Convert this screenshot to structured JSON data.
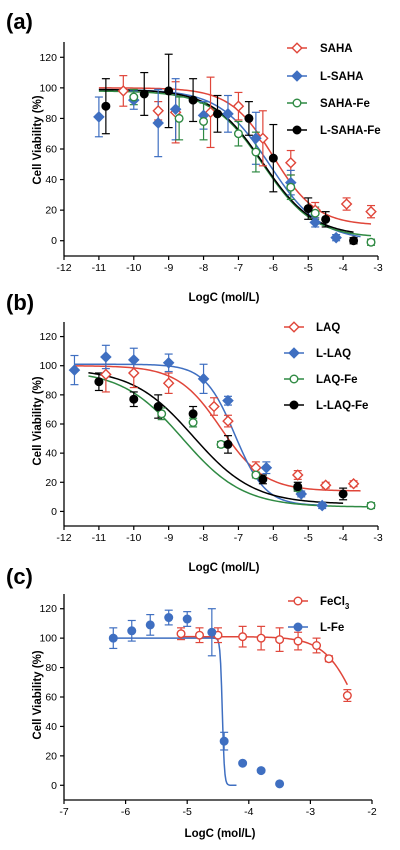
{
  "chart_data": [
    {
      "panel": "(a)",
      "type": "scatter",
      "xlabel": "LogC (mol/L)",
      "ylabel": "Cell Viability (%)",
      "xlim": [
        -12,
        -3
      ],
      "ylim": [
        -10,
        130
      ],
      "xticks": [
        -12,
        -11,
        -10,
        -9,
        -8,
        -7,
        -6,
        -5,
        -4,
        -3
      ],
      "yticks": [
        0,
        20,
        40,
        60,
        80,
        100,
        120
      ],
      "legend_position": "top-right",
      "series": [
        {
          "name": "SAHA",
          "color": "#e0463a",
          "marker": "diamond-open",
          "x": [
            -10.3,
            -9.3,
            -8.8,
            -7.8,
            -7.0,
            -6.3,
            -5.5,
            -4.8,
            -3.9,
            -3.2
          ],
          "y": [
            98,
            85,
            84,
            84,
            88,
            67,
            51,
            20,
            24,
            19
          ],
          "err": [
            10,
            6,
            20,
            23,
            9,
            18,
            8,
            5,
            4,
            4
          ],
          "curve": {
            "top": 100,
            "bottom": 10,
            "logEC50": -6.0,
            "hill": 0.7,
            "from": -11,
            "to": -3.2
          }
        },
        {
          "name": "L-SAHA",
          "color": "#3f6fc1",
          "marker": "diamond",
          "x": [
            -11.0,
            -10.0,
            -9.3,
            -8.8,
            -8.0,
            -7.3,
            -6.5,
            -5.5,
            -4.8,
            -4.2
          ],
          "y": [
            81,
            92,
            77,
            86,
            82,
            83,
            67,
            38,
            12,
            2
          ],
          "err": [
            13,
            6,
            22,
            20,
            9,
            12,
            17,
            8,
            3,
            2
          ],
          "curve": {
            "top": 99,
            "bottom": 0,
            "logEC50": -6.1,
            "hill": 0.6,
            "from": -11,
            "to": -3.5
          }
        },
        {
          "name": "SAHA-Fe",
          "color": "#2f8a43",
          "marker": "circle-open",
          "x": [
            -10.0,
            -8.7,
            -8.0,
            -7.0,
            -6.5,
            -5.5,
            -4.8,
            -3.2
          ],
          "y": [
            94,
            80,
            78,
            70,
            58,
            35,
            18,
            -1
          ],
          "err": [
            5,
            14,
            12,
            8,
            13,
            8,
            4,
            2
          ],
          "curve": {
            "top": 98,
            "bottom": 2,
            "logEC50": -6.3,
            "hill": 0.6,
            "from": -11,
            "to": -3.2
          }
        },
        {
          "name": "L-SAHA-Fe",
          "color": "#000000",
          "marker": "circle",
          "x": [
            -10.8,
            -9.7,
            -9.0,
            -8.3,
            -7.6,
            -6.7,
            -6.0,
            -5.0,
            -4.5,
            -3.7
          ],
          "y": [
            88,
            96,
            98,
            92,
            83,
            80,
            54,
            21,
            14,
            0
          ],
          "err": [
            18,
            14,
            24,
            14,
            12,
            11,
            22,
            7,
            5,
            2
          ],
          "curve": {
            "top": 99,
            "bottom": 3,
            "logEC50": -6.3,
            "hill": 0.6,
            "from": -11,
            "to": -3.7
          }
        }
      ]
    },
    {
      "panel": "(b)",
      "type": "scatter",
      "xlabel": "LogC (mol/L)",
      "ylabel": "Cell Viability (%)",
      "xlim": [
        -12,
        -3
      ],
      "ylim": [
        -10,
        130
      ],
      "xticks": [
        -12,
        -11,
        -10,
        -9,
        -8,
        -7,
        -6,
        -5,
        -4,
        -3
      ],
      "yticks": [
        0,
        20,
        40,
        60,
        80,
        100,
        120
      ],
      "legend_position": "top-right",
      "series": [
        {
          "name": "LAQ",
          "color": "#e0463a",
          "marker": "diamond-open",
          "x": [
            -10.8,
            -10.0,
            -9.0,
            -7.7,
            -7.3,
            -6.5,
            -5.3,
            -4.5,
            -3.7
          ],
          "y": [
            94,
            95,
            88,
            72,
            62,
            30,
            25,
            18,
            19
          ],
          "err": [
            12,
            10,
            7,
            6,
            4,
            4,
            3,
            2,
            2
          ],
          "curve": {
            "top": 100,
            "bottom": 14,
            "logEC50": -7.5,
            "hill": 0.7,
            "from": -11.7,
            "to": -3.5
          }
        },
        {
          "name": "L-LAQ",
          "color": "#3f6fc1",
          "marker": "diamond",
          "x": [
            -11.7,
            -10.8,
            -10.0,
            -9.0,
            -8.0,
            -7.3,
            -6.2,
            -5.2,
            -4.6
          ],
          "y": [
            97,
            106,
            104,
            102,
            91,
            76,
            30,
            12,
            4
          ],
          "err": [
            10,
            8,
            8,
            6,
            10,
            3,
            4,
            2,
            2
          ],
          "curve": {
            "top": 101,
            "bottom": 4,
            "logEC50": -7.1,
            "hill": 1.0,
            "from": -11.7,
            "to": -4.6
          }
        },
        {
          "name": "LAQ-Fe",
          "color": "#2f8a43",
          "marker": "circle-open",
          "x": [
            -9.2,
            -8.3,
            -7.5,
            -6.5,
            -5.3,
            -3.2
          ],
          "y": [
            67,
            61,
            46,
            25,
            16,
            4
          ],
          "err": [
            4,
            3,
            2,
            2,
            2,
            2
          ],
          "curve": {
            "top": 97,
            "bottom": 3,
            "logEC50": -8.6,
            "hill": 0.5,
            "from": -11.3,
            "to": -3.2
          }
        },
        {
          "name": "L-LAQ-Fe",
          "color": "#000000",
          "marker": "circle",
          "x": [
            -11.0,
            -10.0,
            -9.3,
            -8.3,
            -7.3,
            -6.3,
            -5.3,
            -4.0
          ],
          "y": [
            89,
            77,
            72,
            67,
            46,
            22,
            17,
            12
          ],
          "err": [
            6,
            5,
            8,
            5,
            6,
            3,
            3,
            4
          ],
          "curve": {
            "top": 98,
            "bottom": 5,
            "logEC50": -8.3,
            "hill": 0.5,
            "from": -11.3,
            "to": -4.0
          }
        }
      ]
    },
    {
      "panel": "(c)",
      "type": "scatter",
      "xlabel": "LogC (mol/L)",
      "ylabel": "Cell Viability (%)",
      "xlim": [
        -7,
        -2
      ],
      "ylim": [
        -10,
        130
      ],
      "xticks": [
        -7,
        -6,
        -5,
        -4,
        -3,
        -2
      ],
      "yticks": [
        0,
        20,
        40,
        60,
        80,
        100,
        120
      ],
      "legend_position": "top-right",
      "series": [
        {
          "name": "FeCl3",
          "name_main": "FeCl",
          "name_sub": "3",
          "color": "#e0463a",
          "marker": "circle-open",
          "x": [
            -5.1,
            -4.8,
            -4.5,
            -4.1,
            -3.8,
            -3.5,
            -3.2,
            -2.9,
            -2.7,
            -2.4
          ],
          "y": [
            103,
            102,
            102,
            101,
            100,
            99,
            98,
            95,
            86,
            61
          ],
          "err": [
            4,
            5,
            5,
            7,
            8,
            8,
            6,
            5,
            2,
            4
          ],
          "curve": {
            "top": 101,
            "bottom": 0,
            "logEC50": -2.2,
            "hill": 1.6,
            "from": -5.1,
            "to": -2.4
          }
        },
        {
          "name": "L-Fe",
          "color": "#3f6fc1",
          "marker": "circle",
          "x": [
            -6.2,
            -5.9,
            -5.6,
            -5.3,
            -5.0,
            -4.6,
            -4.4,
            -4.1,
            -3.8,
            -3.5
          ],
          "y": [
            100,
            105,
            109,
            114,
            113,
            104,
            30,
            15,
            10,
            1
          ],
          "err": [
            7,
            7,
            7,
            5,
            5,
            16,
            6,
            0,
            0,
            0
          ],
          "curve": {
            "top": 100,
            "bottom": 0,
            "logEC50": -4.43,
            "hill": 25,
            "from": -6.2,
            "to": -4.2
          }
        }
      ]
    }
  ]
}
